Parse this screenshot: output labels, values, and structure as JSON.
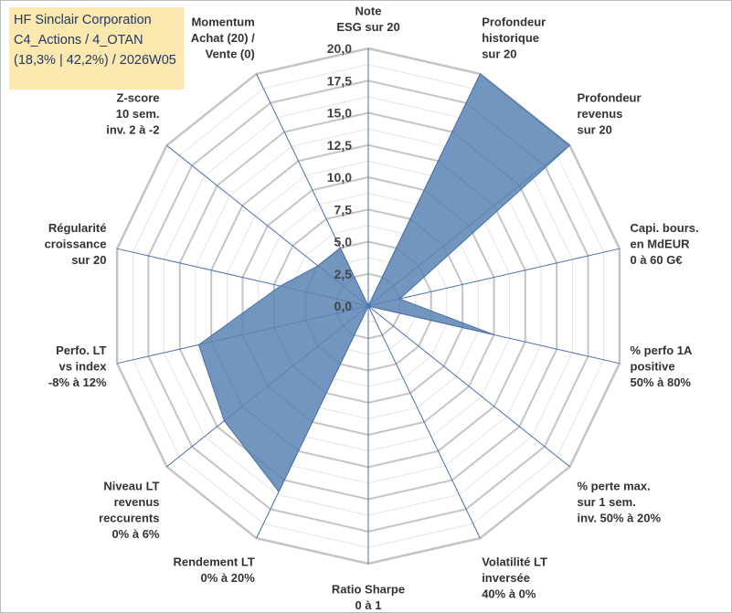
{
  "title": {
    "line1": "HF Sinclair Corporation",
    "line2": "C4_Actions / 4_OTAN",
    "line3": "(18,3% | 42,2%) / 2026W05"
  },
  "chart_data": {
    "type": "radar",
    "rmin": 0,
    "rmax": 20,
    "tick_step": 2.5,
    "minor_step": 1.25,
    "tick_labels": [
      "0,0",
      "2,5",
      "5,0",
      "7,5",
      "10,0",
      "12,5",
      "15,0",
      "17,5",
      "20,0"
    ],
    "axes": [
      {
        "label": [
          "Note",
          "ESG sur 20"
        ],
        "value": 0
      },
      {
        "label": [
          "Profondeur",
          "historique",
          "sur 20"
        ],
        "value": 20
      },
      {
        "label": [
          "Profondeur",
          "revenus",
          "sur 20"
        ],
        "value": 20
      },
      {
        "label": [
          "Capi. bours.",
          "en MdEUR",
          "0 à 60 G€"
        ],
        "value": 2.5
      },
      {
        "label": [
          "% perfo 1A",
          "positive",
          "50% à 80%"
        ],
        "value": 10
      },
      {
        "label": [
          "% perte max.",
          "sur 1 sem.",
          "inv. 50% à 20%"
        ],
        "value": 0
      },
      {
        "label": [
          "Volatilité LT",
          "inversée",
          "40% à 0%"
        ],
        "value": 0
      },
      {
        "label": [
          "Ratio Sharpe",
          "0 à 1"
        ],
        "value": 0
      },
      {
        "label": [
          "Rendement LT",
          "0% à 20%"
        ],
        "value": 16
      },
      {
        "label": [
          "Niveau LT",
          "revenus",
          "reccurents",
          "0% à 6%"
        ],
        "value": 14.3
      },
      {
        "label": [
          "Perfo. LT",
          "vs index",
          "-8% à 12%"
        ],
        "value": 13.5
      },
      {
        "label": [
          "Régularité",
          "croissance",
          "sur 20"
        ],
        "value": 7
      },
      {
        "label": [
          "Z-score",
          "10 sem.",
          "inv. 2 à -2"
        ],
        "value": 5
      },
      {
        "label": [
          "Momentum",
          "Achat (20) /",
          "Vente (0)"
        ],
        "value": 5
      }
    ],
    "series": [
      {
        "name": "HF Sinclair Corporation",
        "color": "#5b84b4"
      }
    ],
    "grid": true
  },
  "colors": {
    "grid_major": "#c4c4c4",
    "grid_minor": "#e4e4e4",
    "axis": "#4a6fb0",
    "fill": "#5b84b4",
    "title_bg": "#fde9b0",
    "title_text": "#1f3864"
  }
}
